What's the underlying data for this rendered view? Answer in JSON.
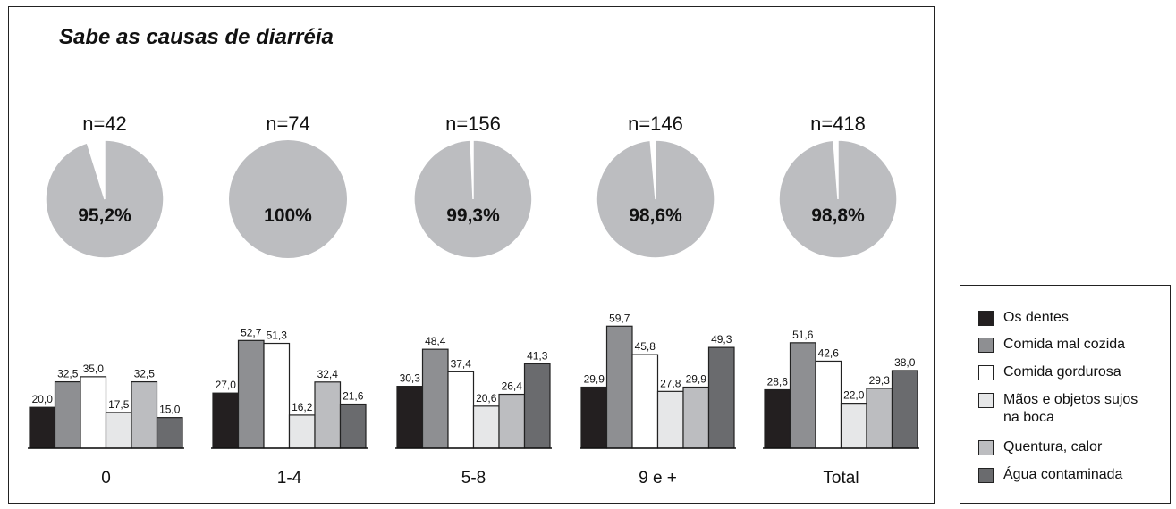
{
  "title": "Sabe as causas de diarréia",
  "colors": {
    "pie_fill": "#bcbdc0",
    "pie_stroke": "#ffffff"
  },
  "chart_data": [
    {
      "type": "pie",
      "description": "Percentage who know the causes of diarrhea, by group",
      "groups": [
        {
          "category": "0",
          "n_label": "n=42",
          "value": 95.2,
          "label": "95,2%"
        },
        {
          "category": "1-4",
          "n_label": "n=74",
          "value": 100,
          "label": "100%"
        },
        {
          "category": "5-8",
          "n_label": "n=156",
          "value": 99.3,
          "label": "99,3%"
        },
        {
          "category": "9 e +",
          "n_label": "n=146",
          "value": 98.6,
          "label": "98,6%"
        },
        {
          "category": "Total",
          "n_label": "n=418",
          "value": 98.8,
          "label": "98,8%"
        }
      ]
    },
    {
      "type": "bar",
      "categories": [
        "0",
        "1-4",
        "5-8",
        "9 e +",
        "Total"
      ],
      "ylim": [
        0,
        60
      ],
      "legend_position": "right",
      "series": [
        {
          "name": "Os dentes",
          "color": "#231f20",
          "values": [
            20.0,
            27.0,
            30.3,
            29.9,
            28.6
          ],
          "labels": [
            "20,0",
            "27,0",
            "30,3",
            "29,9",
            "28,6"
          ]
        },
        {
          "name": "Comida mal cozida",
          "color": "#8e8f92",
          "values": [
            32.5,
            52.7,
            48.4,
            59.7,
            51.6
          ],
          "labels": [
            "32,5",
            "52,7",
            "48,4",
            "59,7",
            "51,6"
          ]
        },
        {
          "name": "Comida gordurosa",
          "color": "#ffffff",
          "values": [
            35.0,
            51.3,
            37.4,
            45.8,
            42.6
          ],
          "labels": [
            "35,0",
            "51,3",
            "37,4",
            "45,8",
            "42,6"
          ]
        },
        {
          "name": "Mãos e objetos sujos na boca",
          "color": "#e6e7e8",
          "values": [
            17.5,
            16.2,
            20.6,
            27.8,
            22.0
          ],
          "labels": [
            "17,5",
            "16,2",
            "20,6",
            "27,8",
            "22,0"
          ]
        },
        {
          "name": "Quentura, calor",
          "color": "#bcbdc0",
          "values": [
            32.5,
            32.4,
            26.4,
            29.9,
            29.3
          ],
          "labels": [
            "32,5",
            "32,4",
            "26,4",
            "29,9",
            "29,3"
          ]
        },
        {
          "name": "Água contaminada",
          "color": "#6a6b6e",
          "values": [
            15.0,
            21.6,
            41.3,
            49.3,
            38.0
          ],
          "labels": [
            "15,0",
            "21,6",
            "41,3",
            "49,3",
            "38,0"
          ]
        }
      ]
    }
  ]
}
